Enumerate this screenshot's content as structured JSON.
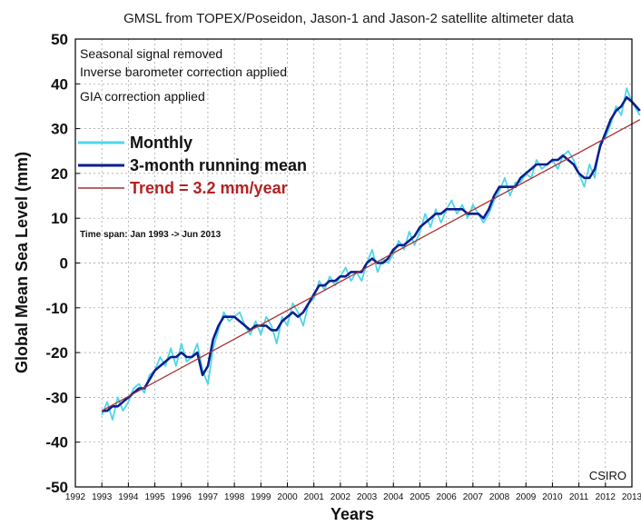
{
  "chart_data": {
    "type": "line",
    "title": "GMSL from TOPEX/Poseidon, Jason-1 and Jason-2 satellite altimeter data",
    "xlabel": "Years",
    "ylabel": "Global Mean Sea Level (mm)",
    "xlim": [
      1992,
      2013
    ],
    "ylim": [
      -50,
      50
    ],
    "xticks": [
      "1992",
      "1993",
      "1994",
      "1995",
      "1996",
      "1997",
      "1998",
      "1999",
      "2000",
      "2001",
      "2002",
      "2003",
      "2004",
      "2005",
      "2006",
      "2007",
      "2008",
      "2009",
      "2010",
      "2011",
      "2012",
      "2013"
    ],
    "yticks": [
      "50",
      "40",
      "30",
      "20",
      "10",
      "0",
      "-10",
      "-20",
      "-30",
      "-40",
      "-50"
    ],
    "grid": true,
    "notes": [
      "Seasonal signal removed",
      "Inverse barometer correction applied",
      "GIA correction applied"
    ],
    "time_span": "Time span: Jan 1993 -> Jun 2013",
    "credit": "CSIRO",
    "legend_position": "upper-left",
    "series": [
      {
        "name": "Monthly",
        "color": "#4fd6e8",
        "x": [
          1993.0,
          1993.2,
          1993.4,
          1993.6,
          1993.8,
          1994.0,
          1994.2,
          1994.4,
          1994.6,
          1994.8,
          1995.0,
          1995.2,
          1995.4,
          1995.6,
          1995.8,
          1996.0,
          1996.2,
          1996.4,
          1996.6,
          1996.8,
          1997.0,
          1997.2,
          1997.4,
          1997.6,
          1997.8,
          1998.0,
          1998.2,
          1998.4,
          1998.6,
          1998.8,
          1999.0,
          1999.2,
          1999.4,
          1999.6,
          1999.8,
          2000.0,
          2000.2,
          2000.4,
          2000.6,
          2000.8,
          2001.0,
          2001.2,
          2001.4,
          2001.6,
          2001.8,
          2002.0,
          2002.2,
          2002.4,
          2002.6,
          2002.8,
          2003.0,
          2003.2,
          2003.4,
          2003.6,
          2003.8,
          2004.0,
          2004.2,
          2004.4,
          2004.6,
          2004.8,
          2005.0,
          2005.2,
          2005.4,
          2005.6,
          2005.8,
          2006.0,
          2006.2,
          2006.4,
          2006.6,
          2006.8,
          2007.0,
          2007.2,
          2007.4,
          2007.6,
          2007.8,
          2008.0,
          2008.2,
          2008.4,
          2008.6,
          2008.8,
          2009.0,
          2009.2,
          2009.4,
          2009.6,
          2009.8,
          2010.0,
          2010.2,
          2010.4,
          2010.6,
          2010.8,
          2011.0,
          2011.2,
          2011.4,
          2011.6,
          2011.8,
          2012.0,
          2012.2,
          2012.4,
          2012.6,
          2012.8,
          2013.0,
          2013.3
        ],
        "values": [
          -34,
          -31,
          -35,
          -30,
          -33,
          -31,
          -28,
          -27,
          -29,
          -25,
          -24,
          -21,
          -23,
          -19,
          -23,
          -18,
          -22,
          -21,
          -18,
          -24,
          -27,
          -19,
          -15,
          -11,
          -13,
          -12,
          -11,
          -14,
          -16,
          -13,
          -16,
          -12,
          -14,
          -18,
          -12,
          -14,
          -9,
          -11,
          -14,
          -9,
          -8,
          -4,
          -6,
          -3,
          -5,
          -3,
          -1,
          -4,
          -2,
          -4,
          0,
          3,
          -2,
          1,
          0,
          2,
          5,
          3,
          7,
          4,
          7,
          11,
          8,
          12,
          9,
          12,
          14,
          11,
          13,
          10,
          13,
          11,
          9,
          11,
          14,
          16,
          19,
          15,
          18,
          18,
          20,
          19,
          23,
          21,
          22,
          23,
          21,
          24,
          25,
          23,
          20,
          17,
          22,
          19,
          27,
          28,
          31,
          35,
          33,
          39,
          36,
          33
        ]
      },
      {
        "name": "3-month running mean",
        "color": "#0a1f8f",
        "x": [
          1993.0,
          1993.2,
          1993.4,
          1993.6,
          1993.8,
          1994.0,
          1994.2,
          1994.4,
          1994.6,
          1994.8,
          1995.0,
          1995.2,
          1995.4,
          1995.6,
          1995.8,
          1996.0,
          1996.2,
          1996.4,
          1996.6,
          1996.8,
          1997.0,
          1997.2,
          1997.4,
          1997.6,
          1997.8,
          1998.0,
          1998.2,
          1998.4,
          1998.6,
          1998.8,
          1999.0,
          1999.2,
          1999.4,
          1999.6,
          1999.8,
          2000.0,
          2000.2,
          2000.4,
          2000.6,
          2000.8,
          2001.0,
          2001.2,
          2001.4,
          2001.6,
          2001.8,
          2002.0,
          2002.2,
          2002.4,
          2002.6,
          2002.8,
          2003.0,
          2003.2,
          2003.4,
          2003.6,
          2003.8,
          2004.0,
          2004.2,
          2004.4,
          2004.6,
          2004.8,
          2005.0,
          2005.2,
          2005.4,
          2005.6,
          2005.8,
          2006.0,
          2006.2,
          2006.4,
          2006.6,
          2006.8,
          2007.0,
          2007.2,
          2007.4,
          2007.6,
          2007.8,
          2008.0,
          2008.2,
          2008.4,
          2008.6,
          2008.8,
          2009.0,
          2009.2,
          2009.4,
          2009.6,
          2009.8,
          2010.0,
          2010.2,
          2010.4,
          2010.6,
          2010.8,
          2011.0,
          2011.2,
          2011.4,
          2011.6,
          2011.8,
          2012.0,
          2012.2,
          2012.4,
          2012.6,
          2012.8,
          2013.0,
          2013.3
        ],
        "values": [
          -33,
          -33,
          -32,
          -32,
          -31,
          -30,
          -29,
          -28,
          -28,
          -26,
          -24,
          -23,
          -22,
          -21,
          -21,
          -20,
          -21,
          -21,
          -20,
          -25,
          -23,
          -17,
          -14,
          -12,
          -12,
          -12,
          -13,
          -14,
          -15,
          -14,
          -14,
          -14,
          -15,
          -15,
          -13,
          -12,
          -11,
          -12,
          -11,
          -9,
          -7,
          -5,
          -5,
          -4,
          -4,
          -3,
          -3,
          -2,
          -2,
          -2,
          0,
          1,
          0,
          0,
          1,
          3,
          4,
          4,
          5,
          6,
          8,
          9,
          10,
          11,
          11,
          12,
          12,
          12,
          12,
          11,
          11,
          11,
          10,
          12,
          15,
          17,
          17,
          17,
          17,
          19,
          20,
          21,
          22,
          22,
          22,
          23,
          23,
          24,
          23,
          22,
          20,
          19,
          19,
          21,
          26,
          29,
          32,
          34,
          35,
          37,
          36,
          34
        ]
      },
      {
        "name": "Trend = 3.2 mm/year",
        "color": "#a83232",
        "x": [
          1993.0,
          2013.3
        ],
        "values": [
          -33,
          32
        ]
      }
    ]
  }
}
